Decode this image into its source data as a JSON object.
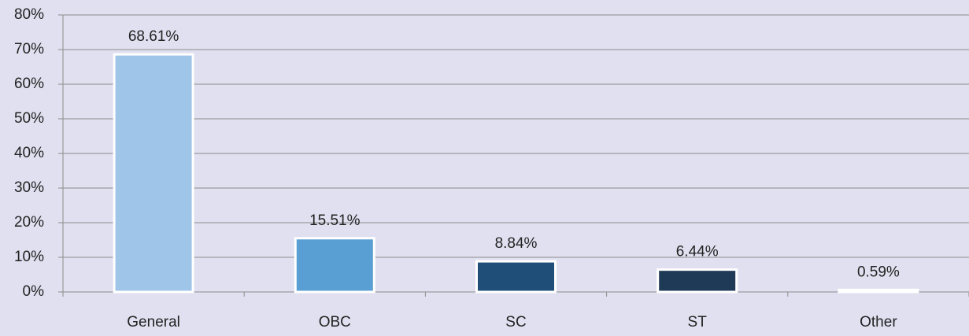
{
  "chart_data": {
    "type": "bar",
    "categories": [
      "General",
      "OBC",
      "SC",
      "ST",
      "Other"
    ],
    "values": [
      68.61,
      15.51,
      8.84,
      6.44,
      0.59
    ],
    "value_labels": [
      "68.61%",
      "15.51%",
      "8.84%",
      "6.44%",
      "0.59%"
    ],
    "colors": [
      "#9fc5e8",
      "#5a9fd4",
      "#1f4e79",
      "#1e3a56",
      "#5ab0cf"
    ],
    "ylim": [
      0,
      80
    ],
    "yticks": [
      {
        "value": 0,
        "label": "0%"
      },
      {
        "value": 10,
        "label": "10%"
      },
      {
        "value": 20,
        "label": "20%"
      },
      {
        "value": 30,
        "label": "30%"
      },
      {
        "value": 40,
        "label": "40%"
      },
      {
        "value": 50,
        "label": "50%"
      },
      {
        "value": 60,
        "label": "60%"
      },
      {
        "value": 70,
        "label": "70%"
      },
      {
        "value": 80,
        "label": "80%"
      }
    ],
    "grid": true
  }
}
